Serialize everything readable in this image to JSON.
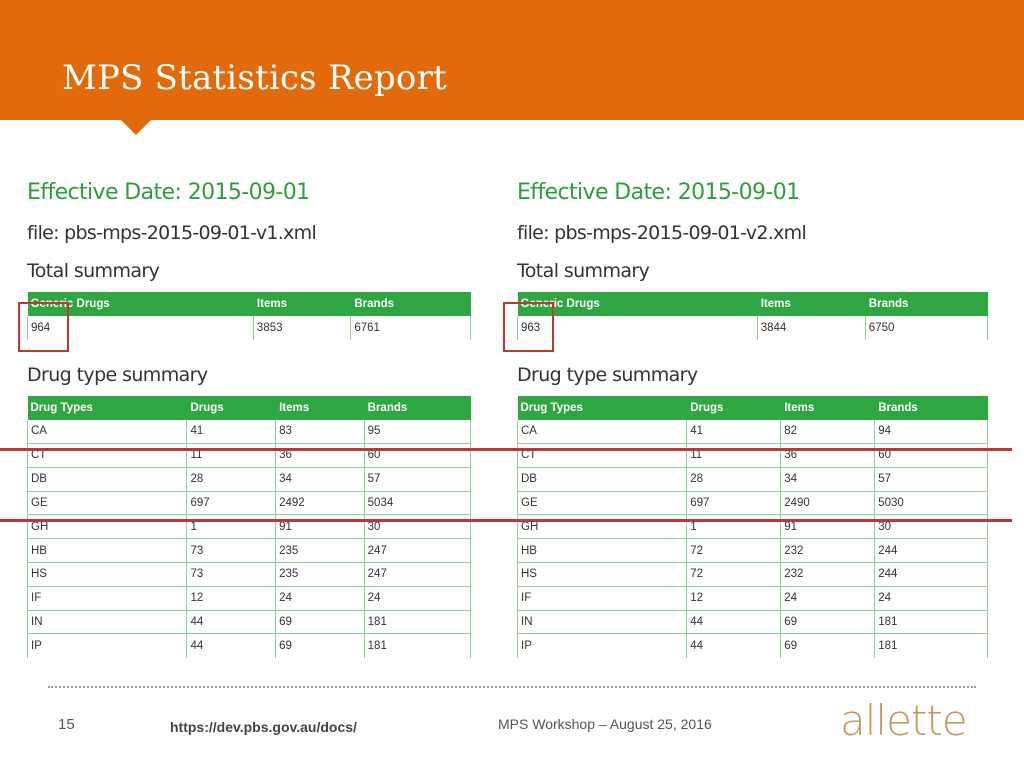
{
  "slide": {
    "title": "MPS Statistics Report",
    "page_number": "15",
    "url": "https://dev.pbs.gov.au/docs/",
    "footer_text": "MPS Workshop – August 25, 2016",
    "logo_text": "allette"
  },
  "left": {
    "effective_date": "Effective Date: 2015-09-01",
    "file": "file: pbs-mps-2015-09-01-v1.xml",
    "total_heading": "Total summary",
    "total_headers": [
      "Generic Drugs",
      "Items",
      "Brands"
    ],
    "total_values": [
      "964",
      "3853",
      "6761"
    ],
    "type_heading": "Drug type summary",
    "type_headers": [
      "Drug Types",
      "Drugs",
      "Items",
      "Brands"
    ],
    "rows": [
      [
        "CA",
        "41",
        "83",
        "95"
      ],
      [
        "CT",
        "11",
        "36",
        "60"
      ],
      [
        "DB",
        "28",
        "34",
        "57"
      ],
      [
        "GE",
        "697",
        "2492",
        "5034"
      ],
      [
        "GH",
        "1",
        "91",
        "30"
      ],
      [
        "HB",
        "73",
        "235",
        "247"
      ],
      [
        "HS",
        "73",
        "235",
        "247"
      ],
      [
        "IF",
        "12",
        "24",
        "24"
      ],
      [
        "IN",
        "44",
        "69",
        "181"
      ],
      [
        "IP",
        "44",
        "69",
        "181"
      ]
    ]
  },
  "right": {
    "effective_date": "Effective Date: 2015-09-01",
    "file": "file: pbs-mps-2015-09-01-v2.xml",
    "total_heading": "Total summary",
    "total_headers": [
      "Generic Drugs",
      "Items",
      "Brands"
    ],
    "total_values": [
      "963",
      "3844",
      "6750"
    ],
    "type_heading": "Drug type summary",
    "type_headers": [
      "Drug Types",
      "Drugs",
      "Items",
      "Brands"
    ],
    "rows": [
      [
        "CA",
        "41",
        "82",
        "94"
      ],
      [
        "CT",
        "11",
        "36",
        "60"
      ],
      [
        "DB",
        "28",
        "34",
        "57"
      ],
      [
        "GE",
        "697",
        "2490",
        "5030"
      ],
      [
        "GH",
        "1",
        "91",
        "30"
      ],
      [
        "HB",
        "72",
        "232",
        "244"
      ],
      [
        "HS",
        "72",
        "232",
        "244"
      ],
      [
        "IF",
        "12",
        "24",
        "24"
      ],
      [
        "IN",
        "44",
        "69",
        "181"
      ],
      [
        "IP",
        "44",
        "69",
        "181"
      ]
    ]
  },
  "colors": {
    "header_orange": "#e36a0a",
    "effective_date_green": "#2e9e3c",
    "table_header_green": "#2ea641",
    "highlight_red": "#c0392b",
    "logo_gold": "#c29a5c"
  }
}
